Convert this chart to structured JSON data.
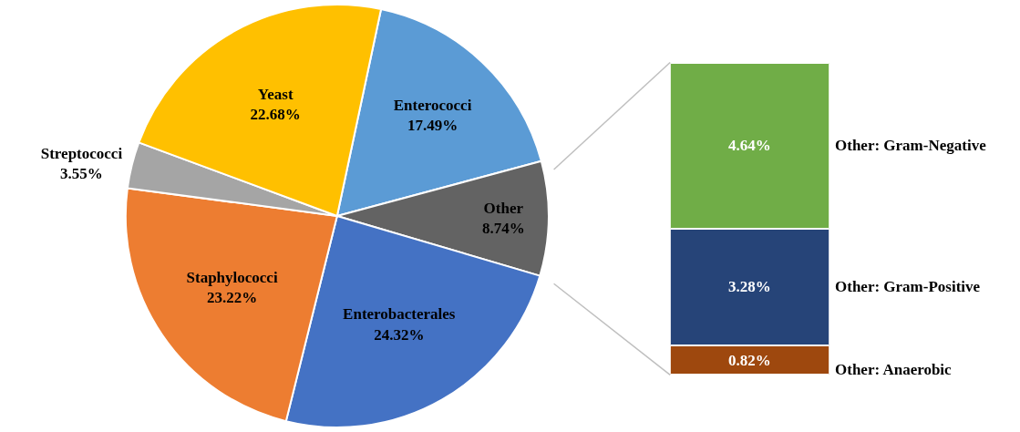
{
  "chart_data": [
    {
      "type": "pie",
      "categories": [
        "Enterococci",
        "Other",
        "Enterobacterales",
        "Staphylococci",
        "Streptococci",
        "Yeast"
      ],
      "values": [
        17.49,
        8.74,
        24.32,
        23.22,
        3.55,
        22.68
      ],
      "value_labels": [
        "17.49%",
        "8.74%",
        "24.32%",
        "23.22%",
        "3.55%",
        "22.68%"
      ],
      "colors": [
        "#5b9bd5",
        "#636363",
        "#4472c4",
        "#ed7d31",
        "#a5a5a5",
        "#ffc000"
      ]
    },
    {
      "type": "bar",
      "stacked": true,
      "categories": [
        null
      ],
      "series": [
        {
          "name": "Other: Anaerobic",
          "color": "#9e480e",
          "values": [
            0.82
          ],
          "value_labels": [
            "0.82%"
          ]
        },
        {
          "name": "Other: Gram-Positive",
          "color": "#264478",
          "values": [
            3.28
          ],
          "value_labels": [
            "3.28%"
          ]
        },
        {
          "name": "Other: Gram-Negative",
          "color": "#70ad47",
          "values": [
            4.64
          ],
          "value_labels": [
            "4.64%"
          ]
        }
      ]
    }
  ]
}
